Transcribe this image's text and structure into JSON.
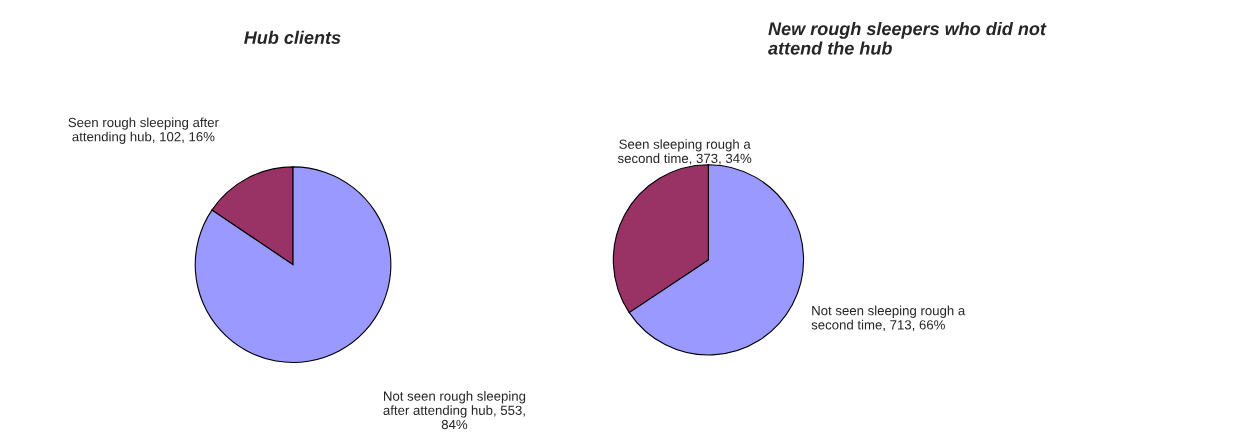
{
  "chart_data": [
    {
      "type": "pie",
      "title": "Hub clients",
      "categories": [
        "Seen rough sleeping after\nattending hub",
        "Not seen rough sleeping\nafter attending hub"
      ],
      "values": [
        102,
        553
      ],
      "colors": [
        "#993366",
        "#9999ff"
      ],
      "value_labels": [
        "102, 16%",
        "553,\n84%"
      ]
    },
    {
      "type": "pie",
      "title": "New rough sleepers who did not\nattend the hub",
      "categories": [
        "Seen sleeping rough a\nsecond time",
        "Not seen sleeping rough a\nsecond time"
      ],
      "values": [
        373,
        713
      ],
      "colors": [
        "#993366",
        "#9999ff"
      ],
      "value_labels": [
        "373, 34%",
        "713, 66%"
      ]
    }
  ]
}
